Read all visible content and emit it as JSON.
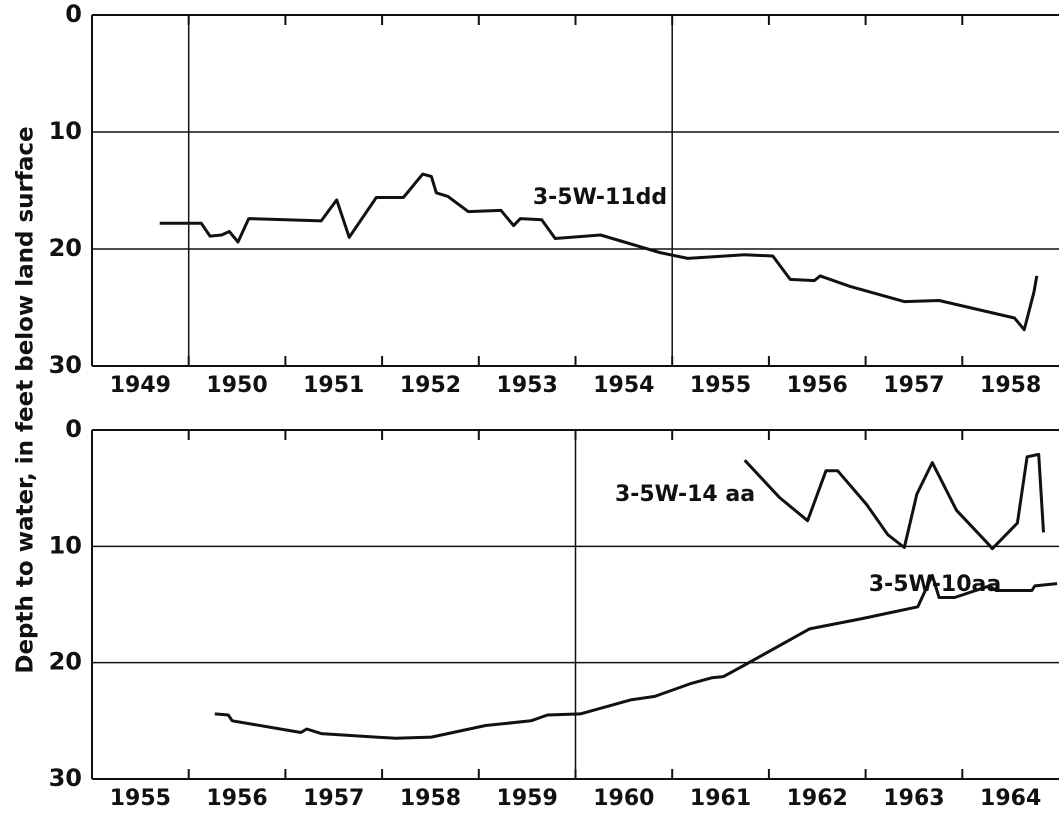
{
  "chart_data": [
    {
      "type": "line",
      "ylabel": "Depth to water,  in feet below land surface",
      "xlim": [
        1949,
        1959
      ],
      "xticks": [
        1949,
        1950,
        1951,
        1952,
        1953,
        1954,
        1955,
        1956,
        1957,
        1958
      ],
      "ylim": [
        0,
        30
      ],
      "yticks": [
        0,
        10,
        20,
        30
      ],
      "y_inverted": true,
      "grid": true,
      "xgrid": [
        1950,
        1955
      ],
      "series": [
        {
          "name": "3-5W-11dd",
          "color": "#111111",
          "x": [
            1949.7,
            1950.13,
            1950.22,
            1950.34,
            1950.42,
            1950.51,
            1950.62,
            1951.37,
            1951.53,
            1951.66,
            1951.94,
            1952.22,
            1952.42,
            1952.51,
            1952.56,
            1952.68,
            1952.89,
            1953.23,
            1953.36,
            1953.43,
            1953.65,
            1953.79,
            1954.26,
            1954.87,
            1955.16,
            1955.75,
            1956.04,
            1956.22,
            1956.47,
            1956.53,
            1956.84,
            1957.4,
            1957.76,
            1958.54,
            1958.64,
            1958.74,
            1958.77
          ],
          "values": [
            17.8,
            17.8,
            18.9,
            18.8,
            18.5,
            19.4,
            17.4,
            17.6,
            15.8,
            19.0,
            15.6,
            15.6,
            13.6,
            13.8,
            15.2,
            15.5,
            16.8,
            16.7,
            18.0,
            17.4,
            17.5,
            19.1,
            18.8,
            20.3,
            20.8,
            20.5,
            20.6,
            22.6,
            22.7,
            22.3,
            23.2,
            24.5,
            24.4,
            25.9,
            26.9,
            23.7,
            22.3
          ]
        }
      ]
    },
    {
      "type": "line",
      "xlim": [
        1955,
        1965
      ],
      "xticks": [
        1955,
        1956,
        1957,
        1958,
        1959,
        1960,
        1961,
        1962,
        1963,
        1964
      ],
      "ylim": [
        0,
        30
      ],
      "yticks": [
        0,
        10,
        20,
        30
      ],
      "y_inverted": true,
      "grid": true,
      "xgrid": [
        1960
      ],
      "series": [
        {
          "name": "3-5W-14 aa",
          "color": "#111111",
          "x": [
            1961.75,
            1962.11,
            1962.4,
            1962.59,
            1962.71,
            1963.01,
            1963.23,
            1963.4,
            1963.53,
            1963.69,
            1963.94,
            1964.28,
            1964.31,
            1964.57,
            1964.67,
            1964.79,
            1964.84
          ],
          "values": [
            2.6,
            5.8,
            7.8,
            3.5,
            3.5,
            6.4,
            9.0,
            10.1,
            5.5,
            2.8,
            6.9,
            9.9,
            10.2,
            8.0,
            2.3,
            2.1,
            8.8
          ]
        },
        {
          "name": "3-5W-10aa",
          "color": "#111111",
          "x": [
            1956.27,
            1956.41,
            1956.45,
            1957.16,
            1957.22,
            1957.37,
            1958.14,
            1958.51,
            1959.07,
            1959.54,
            1959.71,
            1960.05,
            1960.57,
            1960.82,
            1961.19,
            1961.41,
            1961.53,
            1961.75,
            1962.42,
            1962.97,
            1963.54,
            1963.69,
            1963.76,
            1963.92,
            1964.28,
            1964.35,
            1964.72,
            1964.75,
            1964.98
          ],
          "values": [
            24.4,
            24.5,
            25.0,
            26.0,
            25.7,
            26.1,
            26.5,
            26.4,
            25.4,
            25.0,
            24.5,
            24.4,
            23.2,
            22.9,
            21.8,
            21.3,
            21.2,
            20.2,
            17.1,
            16.2,
            15.2,
            12.5,
            14.4,
            14.4,
            13.4,
            13.8,
            13.8,
            13.4,
            13.2
          ]
        }
      ]
    }
  ]
}
